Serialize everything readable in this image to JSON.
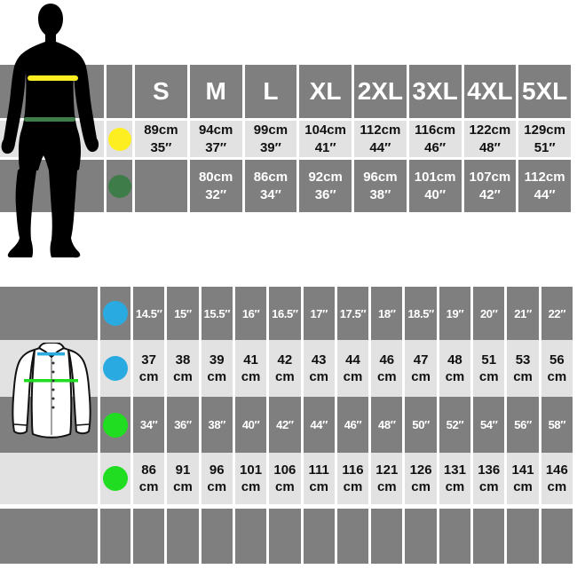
{
  "colors": {
    "cell_dark": "#7f7f7f",
    "cell_light": "#e2e2e2",
    "silhouette": "#000000",
    "shirt_fill": "#ffffff",
    "shirt_outline": "#111111",
    "yellow": "#fdee21",
    "dark_green": "#3e7d49",
    "blue": "#29abe2",
    "green": "#21dd21"
  },
  "top_table": {
    "rows": [
      {
        "dot": null,
        "shade": "dark",
        "style": "header",
        "values": [
          "S",
          "M",
          "L",
          "XL",
          "2XL",
          "3XL",
          "4XL",
          "5XL"
        ]
      },
      {
        "dot": "yellow",
        "shade": "light",
        "style": "body",
        "values": [
          [
            "89cm",
            "35″"
          ],
          [
            "94cm",
            "37″"
          ],
          [
            "99cm",
            "39″"
          ],
          [
            "104cm",
            "41″"
          ],
          [
            "112cm",
            "44″"
          ],
          [
            "116cm",
            "46″"
          ],
          [
            "122cm",
            "48″"
          ],
          [
            "129cm",
            "51″"
          ]
        ]
      },
      {
        "dot": "dark_green",
        "shade": "dark",
        "style": "body",
        "values": [
          null,
          [
            "80cm",
            "32″"
          ],
          [
            "86cm",
            "34″"
          ],
          [
            "92cm",
            "36″"
          ],
          [
            "96cm",
            "38″"
          ],
          [
            "101cm",
            "40″"
          ],
          [
            "107cm",
            "42″"
          ],
          [
            "112cm",
            "44″"
          ]
        ]
      }
    ]
  },
  "bottom_table": {
    "rows": [
      {
        "dot": "blue",
        "shade": "dark",
        "style": "inch",
        "values": [
          "14.5″",
          "15″",
          "15.5″",
          "16″",
          "16.5″",
          "17″",
          "17.5″",
          "18″",
          "18.5″",
          "19″",
          "20″",
          "21″",
          "22″"
        ]
      },
      {
        "dot": "blue",
        "shade": "light",
        "style": "cm",
        "values": [
          [
            "37",
            "cm"
          ],
          [
            "38",
            "cm"
          ],
          [
            "39",
            "cm"
          ],
          [
            "41",
            "cm"
          ],
          [
            "42",
            "cm"
          ],
          [
            "43",
            "cm"
          ],
          [
            "44",
            "cm"
          ],
          [
            "46",
            "cm"
          ],
          [
            "47",
            "cm"
          ],
          [
            "48",
            "cm"
          ],
          [
            "51",
            "cm"
          ],
          [
            "53",
            "cm"
          ],
          [
            "56",
            "cm"
          ]
        ]
      },
      {
        "dot": "green",
        "shade": "dark",
        "style": "inch",
        "values": [
          "34″",
          "36″",
          "38″",
          "40″",
          "42″",
          "44″",
          "46″",
          "48″",
          "50″",
          "52″",
          "54″",
          "56″",
          "58″"
        ]
      },
      {
        "dot": "green",
        "shade": "light",
        "style": "cm",
        "values": [
          [
            "86",
            "cm"
          ],
          [
            "91",
            "cm"
          ],
          [
            "96",
            "cm"
          ],
          [
            "101",
            "cm"
          ],
          [
            "106",
            "cm"
          ],
          [
            "111",
            "cm"
          ],
          [
            "116",
            "cm"
          ],
          [
            "121",
            "cm"
          ],
          [
            "126",
            "cm"
          ],
          [
            "131",
            "cm"
          ],
          [
            "136",
            "cm"
          ],
          [
            "141",
            "cm"
          ],
          [
            "146",
            "cm"
          ]
        ]
      },
      {
        "dot": null,
        "shade": "dark",
        "style": "empty",
        "values": [
          null,
          null,
          null,
          null,
          null,
          null,
          null,
          null,
          null,
          null,
          null,
          null,
          null
        ]
      }
    ]
  },
  "chart_data": [
    {
      "type": "table",
      "title": "Adult garment size chart (male silhouette)",
      "columns": [
        "S",
        "M",
        "L",
        "XL",
        "2XL",
        "3XL",
        "4XL",
        "5XL"
      ],
      "rows": [
        {
          "label": "chest (yellow line)",
          "values_cm": [
            89,
            94,
            99,
            104,
            112,
            116,
            122,
            129
          ],
          "values_in": [
            35,
            37,
            39,
            41,
            44,
            46,
            48,
            51
          ]
        },
        {
          "label": "waist (dark green line)",
          "values_cm": [
            null,
            80,
            86,
            92,
            96,
            101,
            107,
            112
          ],
          "values_in": [
            null,
            32,
            34,
            36,
            38,
            40,
            42,
            44
          ]
        }
      ]
    },
    {
      "type": "table",
      "title": "Shirt size chart (collar & chest)",
      "rows": [
        {
          "label": "collar (blue line) inches",
          "values": [
            14.5,
            15,
            15.5,
            16,
            16.5,
            17,
            17.5,
            18,
            18.5,
            19,
            20,
            21,
            22
          ]
        },
        {
          "label": "collar (blue line) cm",
          "values": [
            37,
            38,
            39,
            41,
            42,
            43,
            44,
            46,
            47,
            48,
            51,
            53,
            56
          ]
        },
        {
          "label": "chest (green line) inches",
          "values": [
            34,
            36,
            38,
            40,
            42,
            44,
            46,
            48,
            50,
            52,
            54,
            56,
            58
          ]
        },
        {
          "label": "chest (green line) cm",
          "values": [
            86,
            91,
            96,
            101,
            106,
            111,
            116,
            121,
            126,
            131,
            136,
            141,
            146
          ]
        }
      ]
    }
  ]
}
